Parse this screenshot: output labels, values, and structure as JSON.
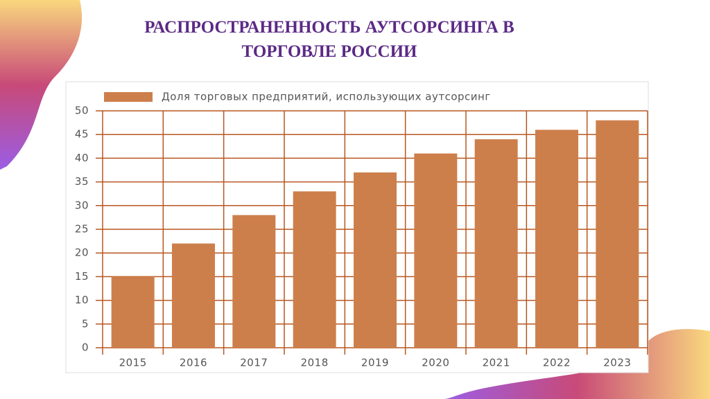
{
  "chart_data": {
    "type": "bar",
    "title": "РАСПРОСТРАНЕННОСТЬ АУТСОРСИНГА В ТОРГОВЛЕ РОССИИ",
    "legend": "Доля торговых предприятий, использующих аутсорсинг",
    "categories": [
      "2015",
      "2016",
      "2017",
      "2018",
      "2019",
      "2020",
      "2021",
      "2022",
      "2023"
    ],
    "values": [
      15,
      22,
      28,
      33,
      37,
      41,
      44,
      46,
      48
    ],
    "color": "#cd7f4b",
    "ylim": [
      0,
      50
    ],
    "yticks": [
      0,
      5,
      10,
      15,
      20,
      25,
      30,
      35,
      40,
      45,
      50
    ],
    "grid": true
  }
}
